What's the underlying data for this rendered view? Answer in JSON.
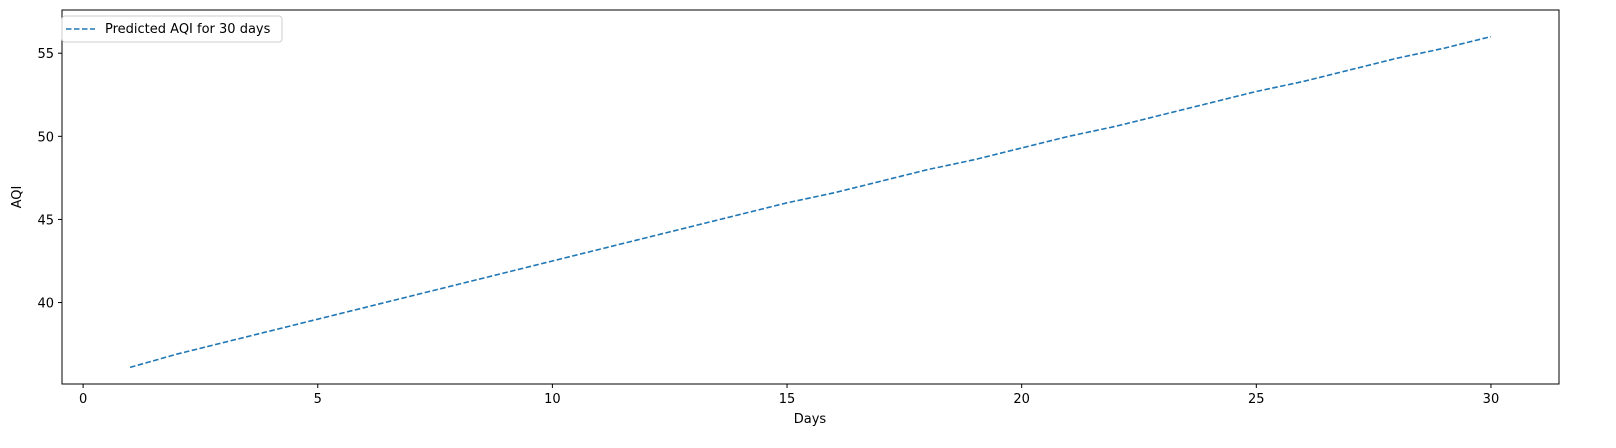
{
  "chart_data": {
    "type": "line",
    "title": "",
    "xlabel": "Days",
    "ylabel": "AQI",
    "xlim": [
      -0.45,
      31.45
    ],
    "ylim": [
      35.1,
      57.6
    ],
    "xticks": [
      0,
      5,
      10,
      15,
      20,
      25,
      30
    ],
    "xtick_labels": [
      "0",
      "5",
      "10",
      "15",
      "20",
      "25",
      "30"
    ],
    "yticks": [
      40,
      45,
      50,
      55
    ],
    "ytick_labels": [
      "40",
      "45",
      "50",
      "55"
    ],
    "grid": false,
    "legend_position": "upper-left",
    "series": [
      {
        "name": "Predicted AQI for 30 days",
        "color": "#1f77b4",
        "line_style": "dashed",
        "x": [
          1,
          2,
          3,
          4,
          5,
          6,
          7,
          8,
          9,
          10,
          11,
          12,
          13,
          14,
          15,
          16,
          17,
          18,
          19,
          20,
          21,
          22,
          23,
          24,
          25,
          26,
          27,
          28,
          29,
          30
        ],
        "values": [
          36.1,
          36.9,
          37.6,
          38.3,
          39.0,
          39.7,
          40.4,
          41.1,
          41.8,
          42.5,
          43.2,
          43.9,
          44.6,
          45.3,
          46.0,
          46.6,
          47.3,
          48.0,
          48.6,
          49.3,
          50.0,
          50.6,
          51.3,
          52.0,
          52.7,
          53.3,
          54.0,
          54.7,
          55.3,
          56.0
        ]
      }
    ]
  }
}
